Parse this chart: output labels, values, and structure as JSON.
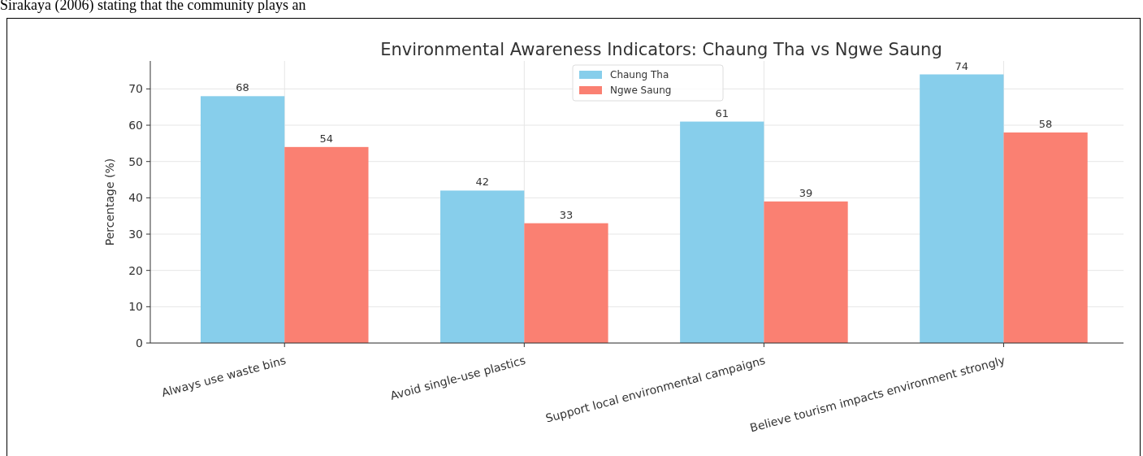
{
  "chart_data": {
    "type": "bar",
    "title": "Environmental Awareness Indicators: Chaung Tha vs Ngwe Saung",
    "ylabel": "Percentage (%)",
    "categories": [
      "Always use waste bins",
      "Avoid single-use plastics",
      "Support local environmental campaigns",
      "Believe tourism impacts environment strongly"
    ],
    "series": [
      {
        "name": "Chaung Tha",
        "color": "#87ceeb",
        "values": [
          68,
          42,
          61,
          74
        ]
      },
      {
        "name": "Ngwe Saung",
        "color": "#fa8072",
        "values": [
          54,
          33,
          39,
          58
        ]
      }
    ],
    "ylim": [
      0,
      77.7
    ],
    "yticks": [
      0,
      10,
      20,
      30,
      40,
      50,
      60,
      70
    ],
    "grid": true,
    "legend": "top",
    "data_labels": true,
    "annotations": [
      "Sirakaya (2006) stating that the community plays an"
    ]
  }
}
